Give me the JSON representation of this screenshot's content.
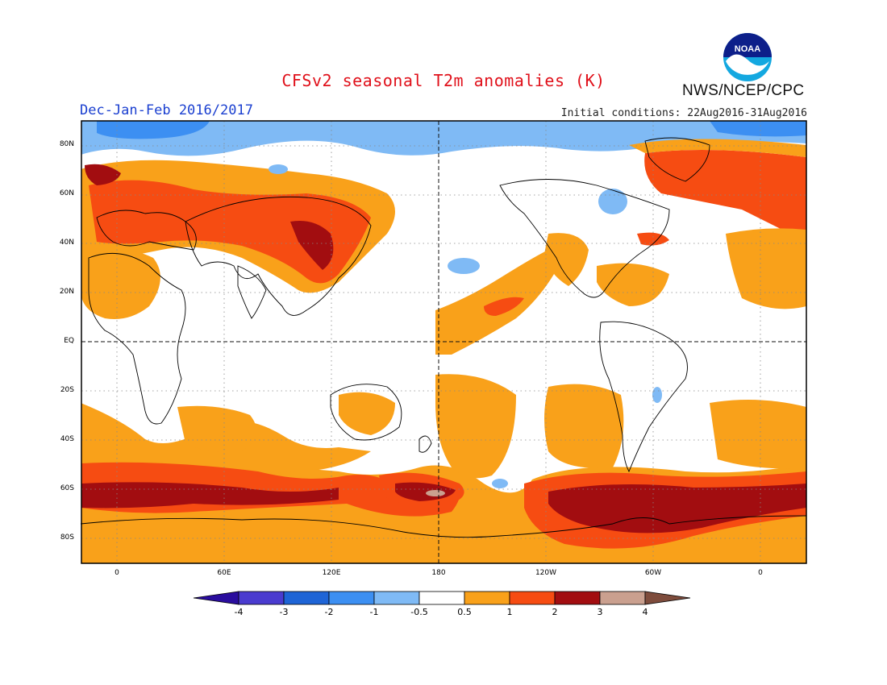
{
  "header": {
    "title": "CFSv2 seasonal T2m anomalies (K)",
    "period": "Dec-Jan-Feb 2016/2017",
    "initial_conditions": "Initial conditions: 22Aug2016-31Aug2016",
    "agency": "NWS/NCEP/CPC",
    "logo_text": "NOAA"
  },
  "map": {
    "lat_labels": [
      "80N",
      "60N",
      "40N",
      "20N",
      "EQ",
      "20S",
      "40S",
      "60S",
      "80S"
    ],
    "lon_labels": [
      "0",
      "60E",
      "120E",
      "180",
      "120W",
      "60W",
      "0"
    ]
  },
  "legend": {
    "unit": "K",
    "tick_labels": [
      "-4",
      "-3",
      "-2",
      "-1",
      "-0.5",
      "0.5",
      "1",
      "2",
      "3",
      "4"
    ],
    "colors": [
      "#2a0d9e",
      "#4a3bcf",
      "#1e64d6",
      "#3c8ff2",
      "#7fbaf5",
      "#ffffff",
      "#f9a11a",
      "#f64c12",
      "#a20d10",
      "#caa08f",
      "#7e4c3c"
    ]
  },
  "colors": {
    "title": "#e0101a",
    "period": "#1a3fd0",
    "anomaly_0_5_to_1": "#f9a11a",
    "anomaly_1_to_2": "#f64c12",
    "anomaly_2_to_3": "#a20d10",
    "anomaly_3_to_4": "#caa08f",
    "anomaly_neg_0_5_to_neg_1": "#7fbaf5",
    "anomaly_neg_1_to_neg_2": "#3c8ff2"
  }
}
